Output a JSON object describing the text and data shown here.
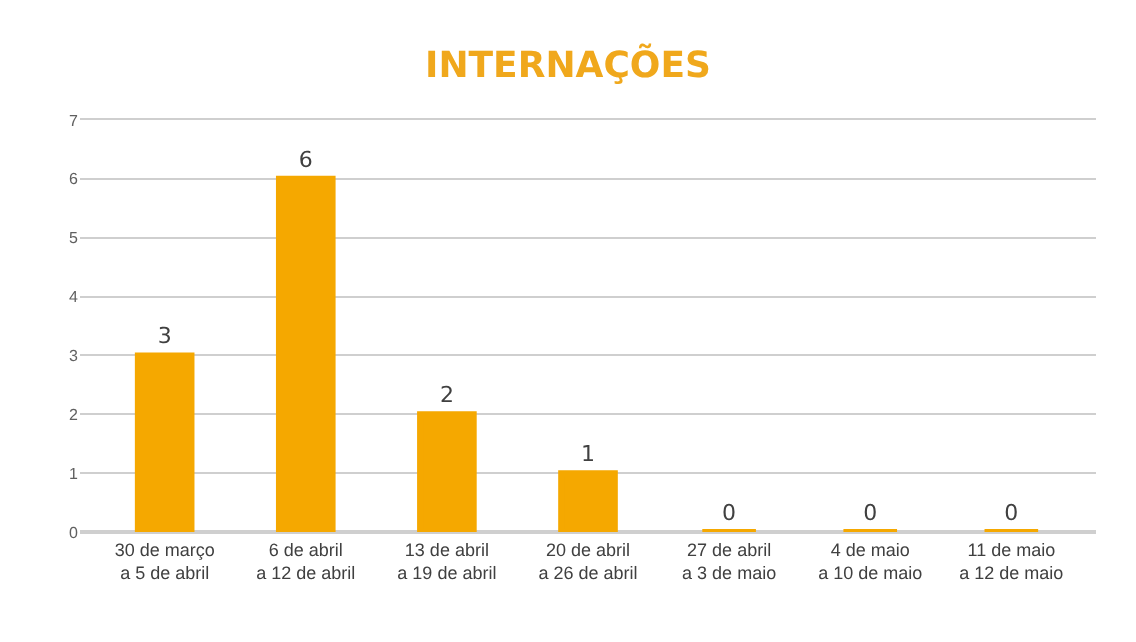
{
  "chart_data": {
    "type": "bar",
    "title": "INTERNAÇÕES",
    "categories": [
      "30 de março\na 5 de abril",
      "6 de abril\na 12 de abril",
      "13 de abril\na 19 de abril",
      "20 de abril\na 26 de abril",
      "27 de abril\na 3 de maio",
      "4 de maio\na 10 de maio",
      "11 de maio\na 12 de maio"
    ],
    "values": [
      3,
      6,
      2,
      1,
      0,
      0,
      0
    ],
    "color": "#f5a800",
    "ylim": [
      0,
      7
    ],
    "yticks": [
      0,
      1,
      2,
      3,
      4,
      5,
      6,
      7
    ],
    "grid": "y",
    "data_labels": true,
    "legend": false
  }
}
